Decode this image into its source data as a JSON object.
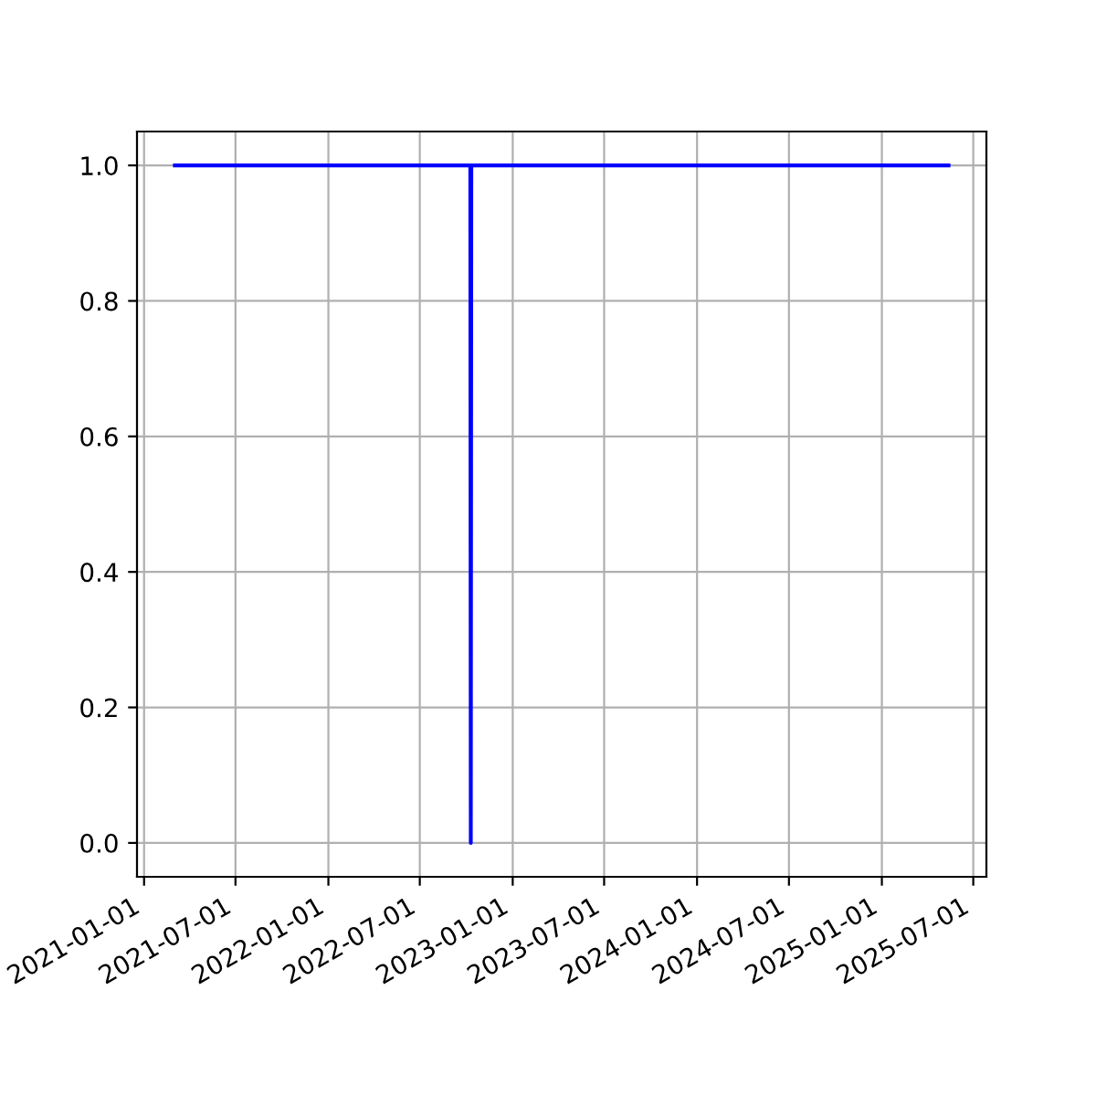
{
  "chart_data": {
    "type": "line",
    "x": [
      "2021-03-03",
      "2022-10-09",
      "2022-10-10",
      "2022-10-11",
      "2025-05-13"
    ],
    "series": [
      {
        "color": "#0000ff",
        "values": [
          1,
          1,
          0,
          1,
          1
        ]
      }
    ],
    "xlim": [
      "2020-12-18",
      "2025-07-27"
    ],
    "xticks": [
      {
        "value": "2021-01-01",
        "label": "2021-01-01"
      },
      {
        "value": "2021-07-01",
        "label": "2021-07-01"
      },
      {
        "value": "2022-01-01",
        "label": "2022-01-01"
      },
      {
        "value": "2022-07-01",
        "label": "2022-07-01"
      },
      {
        "value": "2023-01-01",
        "label": "2023-01-01"
      },
      {
        "value": "2023-07-01",
        "label": "2023-07-01"
      },
      {
        "value": "2024-01-01",
        "label": "2024-01-01"
      },
      {
        "value": "2024-07-01",
        "label": "2024-07-01"
      },
      {
        "value": "2025-01-01",
        "label": "2025-01-01"
      },
      {
        "value": "2025-07-01",
        "label": "2025-07-01"
      }
    ],
    "ylim": [
      -0.05,
      1.05
    ],
    "yticks": [
      {
        "value": 0,
        "label": "0.0"
      },
      {
        "value": 0.2,
        "label": "0.2"
      },
      {
        "value": 0.4,
        "label": "0.4"
      },
      {
        "value": 0.6,
        "label": "0.6"
      },
      {
        "value": 0.8,
        "label": "0.8"
      },
      {
        "value": 1,
        "label": "1.0"
      }
    ],
    "grid": true,
    "marker": "none",
    "line_style": "solid"
  }
}
